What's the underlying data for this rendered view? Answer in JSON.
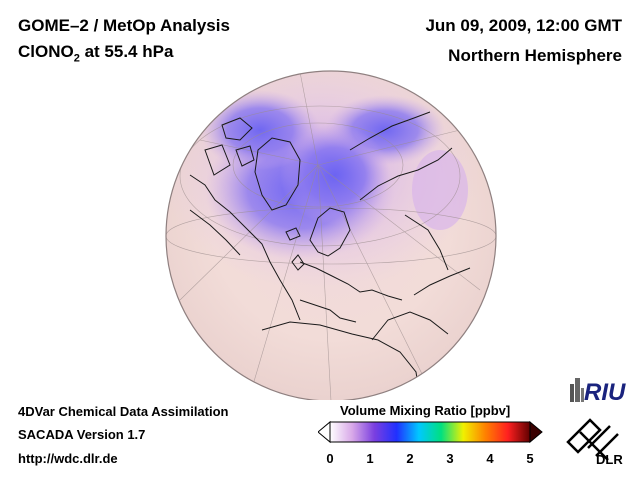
{
  "header": {
    "instrument": "GOME–2 / MetOp Analysis",
    "species_prefix": "ClONO",
    "species_sub": "2",
    "species_suffix": " at 55.4 hPa",
    "datetime": "Jun 09, 2009, 12:00 GMT",
    "region": "Northern Hemisphere"
  },
  "footer": {
    "line1": "4DVar Chemical Data Assimilation",
    "line2": "SACADA Version 1.7",
    "line3": "http://wdc.dlr.de"
  },
  "colorbar": {
    "title": "Volume Mixing Ratio [ppbv]",
    "ticks": [
      "0",
      "1",
      "2",
      "3",
      "4",
      "5"
    ],
    "range": [
      0,
      5
    ],
    "stops": [
      "#ffffff",
      "#d8a8e8",
      "#7a3fe0",
      "#2030ff",
      "#00c8ff",
      "#00e080",
      "#f0f000",
      "#ff8000",
      "#ff2020",
      "#600000"
    ]
  },
  "logos": {
    "riu": "RIU",
    "dlr": "DLR"
  },
  "map": {
    "projection": "orthographic",
    "background_color": "#f3ded9",
    "low_color": "#6f66f2",
    "mid_color": "#c8a3e8"
  }
}
